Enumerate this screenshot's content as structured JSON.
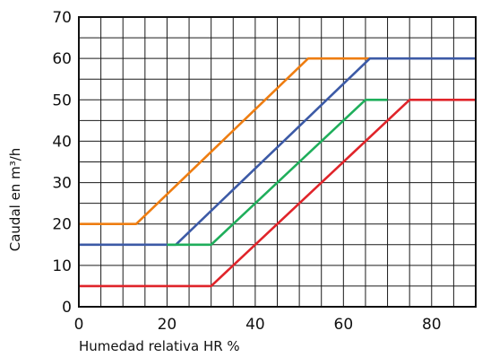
{
  "chart_data": {
    "type": "line",
    "title": "",
    "xlabel": "Humedad relativa HR %",
    "ylabel": "Caudal en m³/h",
    "xlim": [
      0,
      90
    ],
    "ylim": [
      0,
      70
    ],
    "x_ticks": [
      0,
      20,
      40,
      60,
      80
    ],
    "y_ticks": [
      0,
      10,
      20,
      30,
      40,
      50,
      60,
      70
    ],
    "grid": true,
    "minor_grid_x_step": 5,
    "grid_y_step": 5,
    "legend": "none",
    "series": [
      {
        "color": "#ee7d11",
        "points": [
          [
            0,
            20
          ],
          [
            13,
            20
          ],
          [
            52,
            60
          ],
          [
            66,
            60
          ]
        ]
      },
      {
        "color": "#3c5aa6",
        "points": [
          [
            0,
            15
          ],
          [
            22,
            15
          ],
          [
            66,
            60
          ],
          [
            90,
            60
          ]
        ]
      },
      {
        "color": "#1fae5b",
        "points": [
          [
            20,
            15
          ],
          [
            30,
            15
          ],
          [
            65,
            50
          ],
          [
            70,
            50
          ]
        ]
      },
      {
        "color": "#e0242a",
        "points": [
          [
            0,
            5
          ],
          [
            30,
            5
          ],
          [
            75,
            50
          ],
          [
            90,
            50
          ]
        ]
      }
    ]
  }
}
